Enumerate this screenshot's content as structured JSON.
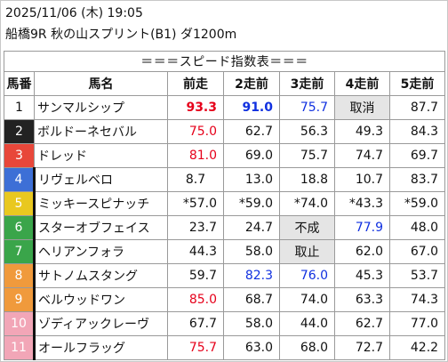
{
  "header": {
    "date": "2025/11/06 (木) 19:05",
    "race": "船橋9R 秋の山スプリント(B1) ダ1200m"
  },
  "table": {
    "title": "＝＝＝スピード指数表＝＝＝",
    "columns": [
      "馬番",
      "馬名",
      "前走",
      "2走前",
      "3走前",
      "4走前",
      "5走前"
    ],
    "rows": [
      {
        "no": "1",
        "name": "サンマルシップ",
        "values": [
          {
            "text": "93.3",
            "style": "red bold"
          },
          {
            "text": "91.0",
            "style": "blue bold"
          },
          {
            "text": "75.7",
            "style": "blue"
          },
          {
            "text": "取消",
            "style": "special"
          },
          {
            "text": "87.7",
            "style": ""
          }
        ]
      },
      {
        "no": "2",
        "name": "ボルドーネセバル",
        "values": [
          {
            "text": "75.0",
            "style": "red"
          },
          {
            "text": "62.7",
            "style": ""
          },
          {
            "text": "56.3",
            "style": ""
          },
          {
            "text": "49.3",
            "style": ""
          },
          {
            "text": "84.3",
            "style": ""
          }
        ]
      },
      {
        "no": "3",
        "name": "ドレッド",
        "values": [
          {
            "text": "81.0",
            "style": "red"
          },
          {
            "text": "69.0",
            "style": ""
          },
          {
            "text": "75.7",
            "style": ""
          },
          {
            "text": "74.7",
            "style": ""
          },
          {
            "text": "69.7",
            "style": ""
          }
        ]
      },
      {
        "no": "4",
        "name": "リヴェルベロ",
        "values": [
          {
            "text": "8.7",
            "style": ""
          },
          {
            "text": "13.0",
            "style": ""
          },
          {
            "text": "18.8",
            "style": ""
          },
          {
            "text": "10.7",
            "style": ""
          },
          {
            "text": "83.7",
            "style": ""
          }
        ]
      },
      {
        "no": "5",
        "name": "ミッキースピナッチ",
        "values": [
          {
            "text": "*57.0",
            "style": ""
          },
          {
            "text": "*59.0",
            "style": ""
          },
          {
            "text": "*74.0",
            "style": ""
          },
          {
            "text": "*43.3",
            "style": ""
          },
          {
            "text": "*59.0",
            "style": ""
          }
        ]
      },
      {
        "no": "6",
        "name": "スターオブフェイス",
        "values": [
          {
            "text": "23.7",
            "style": ""
          },
          {
            "text": "24.7",
            "style": ""
          },
          {
            "text": "不成",
            "style": "special"
          },
          {
            "text": "77.9",
            "style": "blue"
          },
          {
            "text": "48.0",
            "style": ""
          }
        ]
      },
      {
        "no": "7",
        "name": "ヘリアンフォラ",
        "values": [
          {
            "text": "44.3",
            "style": ""
          },
          {
            "text": "58.0",
            "style": ""
          },
          {
            "text": "取止",
            "style": "special"
          },
          {
            "text": "62.0",
            "style": ""
          },
          {
            "text": "67.0",
            "style": ""
          }
        ]
      },
      {
        "no": "8",
        "name": "サトノムスタング",
        "values": [
          {
            "text": "59.7",
            "style": ""
          },
          {
            "text": "82.3",
            "style": "blue"
          },
          {
            "text": "76.0",
            "style": "blue"
          },
          {
            "text": "45.3",
            "style": ""
          },
          {
            "text": "53.7",
            "style": ""
          }
        ]
      },
      {
        "no": "9",
        "name": "ベルウッドワン",
        "values": [
          {
            "text": "85.0",
            "style": "red"
          },
          {
            "text": "68.7",
            "style": ""
          },
          {
            "text": "74.0",
            "style": ""
          },
          {
            "text": "63.3",
            "style": ""
          },
          {
            "text": "74.3",
            "style": ""
          }
        ]
      },
      {
        "no": "10",
        "name": "ゾディアックレーヴ",
        "values": [
          {
            "text": "67.7",
            "style": ""
          },
          {
            "text": "58.0",
            "style": ""
          },
          {
            "text": "44.0",
            "style": ""
          },
          {
            "text": "62.7",
            "style": ""
          },
          {
            "text": "77.0",
            "style": ""
          }
        ]
      },
      {
        "no": "11",
        "name": "オールフラッグ",
        "values": [
          {
            "text": "75.7",
            "style": "red"
          },
          {
            "text": "63.0",
            "style": ""
          },
          {
            "text": "68.0",
            "style": ""
          },
          {
            "text": "72.7",
            "style": ""
          },
          {
            "text": "42.2",
            "style": ""
          }
        ]
      }
    ]
  },
  "waku_colors": {
    "1": {
      "bg": "#ffffff",
      "fg": "#111111"
    },
    "2": {
      "bg": "#222222",
      "fg": "#ffffff"
    },
    "3": {
      "bg": "#e8473a",
      "fg": "#ffffff"
    },
    "4": {
      "bg": "#3d6fd6",
      "fg": "#ffffff"
    },
    "5": {
      "bg": "#e9c81f",
      "fg": "#ffffff"
    },
    "6": {
      "bg": "#3aa54a",
      "fg": "#ffffff"
    },
    "7": {
      "bg": "#3aa54a",
      "fg": "#ffffff"
    },
    "8": {
      "bg": "#f09a3c",
      "fg": "#ffffff"
    },
    "9": {
      "bg": "#f09a3c",
      "fg": "#ffffff"
    },
    "10": {
      "bg": "#f2a6b7",
      "fg": "#ffffff"
    },
    "11": {
      "bg": "#f2a6b7",
      "fg": "#ffffff"
    }
  }
}
